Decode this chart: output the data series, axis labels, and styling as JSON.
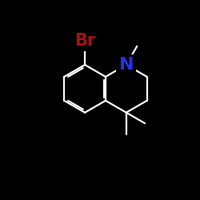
{
  "bg_color": "#000000",
  "bond_color": "#ffffff",
  "br_color": "#aa1111",
  "n_color": "#2233ee",
  "bond_lw": 1.6,
  "L": 1.55,
  "figsize": [
    2.5,
    2.5
  ],
  "dpi": 100,
  "xlim": [
    0,
    10
  ],
  "ylim": [
    0,
    10
  ],
  "label_br_fontsize": 15,
  "label_n_fontsize": 16,
  "mid_x": 5.2,
  "mid_y": 5.8
}
